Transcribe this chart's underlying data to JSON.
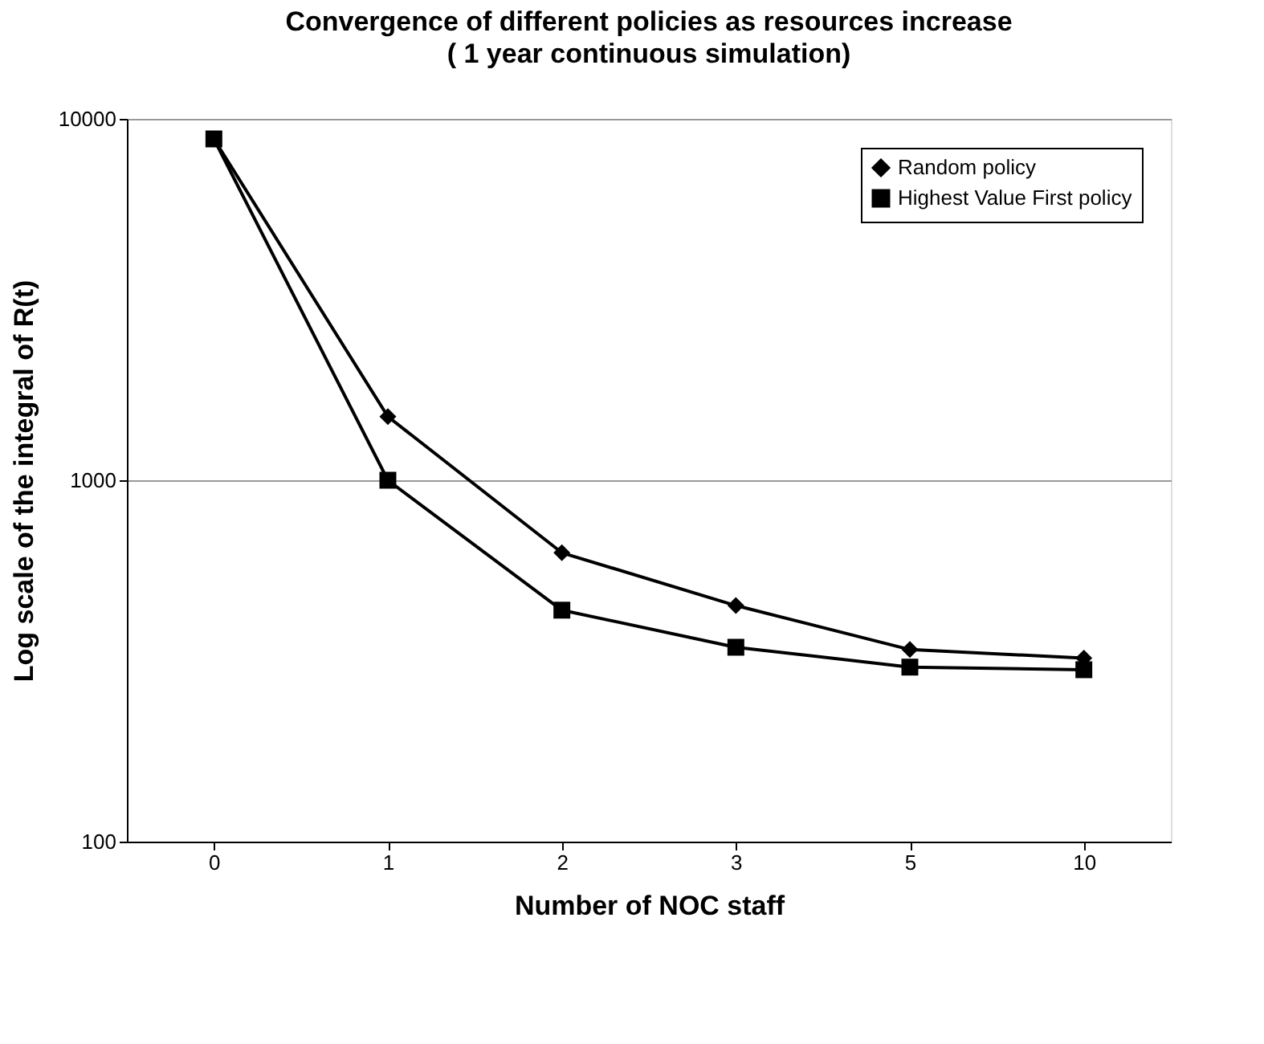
{
  "chart_data": {
    "type": "line",
    "title": "Convergence of different policies as resources increase",
    "subtitle": "( 1 year continuous simulation)",
    "xlabel": "Number of NOC staff",
    "ylabel": "Log scale of the integral of R(t)",
    "categories": [
      "0",
      "1",
      "2",
      "3",
      "5",
      "10"
    ],
    "series": [
      {
        "name": "Random policy",
        "color": "#000000",
        "marker": "diamond",
        "values": [
          8800,
          1500,
          630,
          450,
          340,
          322
        ]
      },
      {
        "name": "Highest Value First policy",
        "color": "#000000",
        "marker": "square",
        "values": [
          8800,
          1000,
          437,
          345,
          304,
          299
        ]
      }
    ],
    "log": true,
    "ylim": [
      100,
      10000
    ],
    "yticks": [
      100,
      1000,
      10000
    ],
    "grid": "y",
    "legend": "top right",
    "line_style": "solid"
  }
}
